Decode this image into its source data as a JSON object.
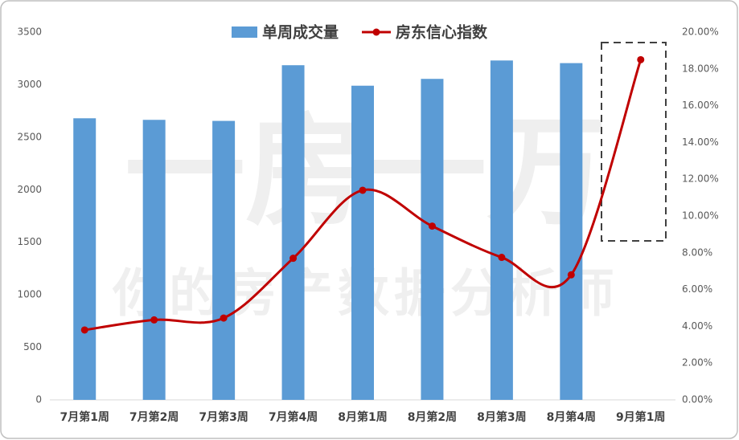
{
  "chart_data": {
    "type": "bar_line",
    "categories": [
      "7月第1周",
      "7月第2周",
      "7月第3周",
      "7月第4周",
      "8月第1周",
      "8月第2周",
      "8月第3周",
      "8月第4周",
      "9月第1周"
    ],
    "series": [
      {
        "name": "单周成交量",
        "type": "bar",
        "color": "#5b9bd5",
        "values": [
          2680,
          2665,
          2655,
          3185,
          2990,
          3055,
          3230,
          3205,
          null
        ]
      },
      {
        "name": "房东信心指数",
        "type": "line",
        "axis": "y2",
        "color": "#c00000",
        "values": [
          3.8,
          4.35,
          4.45,
          7.7,
          11.4,
          9.45,
          7.75,
          6.8,
          18.5
        ]
      }
    ],
    "ylim": [
      0,
      3500
    ],
    "yticks": [
      0,
      500,
      1000,
      1500,
      2000,
      2500,
      3000,
      3500
    ],
    "y2lim": [
      0,
      20
    ],
    "y2ticks": [
      {
        "value": 0,
        "label": "0.00%"
      },
      {
        "value": 2,
        "label": "2.00%"
      },
      {
        "value": 4,
        "label": "4.00%"
      },
      {
        "value": 6,
        "label": "6.00%"
      },
      {
        "value": 8,
        "label": "8.00%"
      },
      {
        "value": 10,
        "label": "10.00%"
      },
      {
        "value": 12,
        "label": "12.00%"
      },
      {
        "value": 14,
        "label": "14.00%"
      },
      {
        "value": 16,
        "label": "16.00%"
      },
      {
        "value": 18,
        "label": "18.00%"
      },
      {
        "value": 20,
        "label": "20.00%"
      }
    ],
    "legend": "top",
    "watermark": [
      "一房一万",
      "你的房产数据分析师"
    ]
  }
}
